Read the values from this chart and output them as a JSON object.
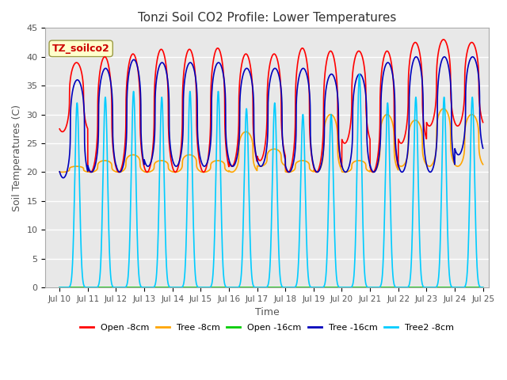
{
  "title": "Tonzi Soil CO2 Profile: Lower Temperatures",
  "xlabel": "Time",
  "ylabel": "Soil Temperatures (C)",
  "annotation": "TZ_soilco2",
  "ylim": [
    0,
    45
  ],
  "xlim_days": [
    9.5,
    25.2
  ],
  "series_colors": {
    "open_8cm": "#FF0000",
    "tree_8cm": "#FFA500",
    "open_16cm": "#00CC00",
    "tree_16cm": "#0000BB",
    "tree2_8cm": "#00CCFF"
  },
  "legend_labels": [
    "Open -8cm",
    "Tree -8cm",
    "Open -16cm",
    "Tree -16cm",
    "Tree2 -8cm"
  ],
  "bg_color": "#E8E8E8",
  "grid_color": "#FFFFFF",
  "days_start": 10,
  "days_end": 25,
  "n_days": 15,
  "samples_per_day": 288,
  "open_8cm_peaks": [
    39,
    40,
    40.5,
    41.3,
    41.3,
    41.5,
    40.5,
    40.5,
    41.5,
    41,
    41,
    41,
    42.5,
    43,
    42.5
  ],
  "open_8cm_troughs": [
    27,
    20,
    20,
    20,
    20,
    20,
    21,
    22,
    20,
    20,
    25,
    20,
    25,
    28,
    28
  ],
  "tree_8cm_peaks": [
    21,
    22,
    23,
    22,
    23,
    22,
    27,
    24,
    22,
    30,
    22,
    30,
    29,
    31,
    30
  ],
  "tree_8cm_troughs": [
    20,
    20,
    20,
    20,
    20,
    20,
    20,
    21,
    20,
    20,
    20,
    20,
    21,
    21,
    21
  ],
  "tree_16cm_peaks": [
    36,
    38,
    39.5,
    39,
    39,
    39,
    38,
    38,
    38,
    37,
    37,
    39,
    40,
    40,
    40
  ],
  "tree_16cm_troughs": [
    19,
    20,
    20,
    21,
    21,
    21,
    21,
    21,
    20,
    20,
    20,
    20,
    20,
    20,
    23
  ],
  "tree2_8cm_peaks": [
    32,
    33,
    34,
    33,
    34,
    34,
    31,
    32,
    30,
    30,
    37,
    32,
    33,
    33,
    33
  ],
  "tree2_8cm_troughs": [
    0,
    0,
    0,
    0,
    0,
    0,
    0,
    0,
    0,
    0,
    0,
    0,
    0,
    0,
    0
  ]
}
